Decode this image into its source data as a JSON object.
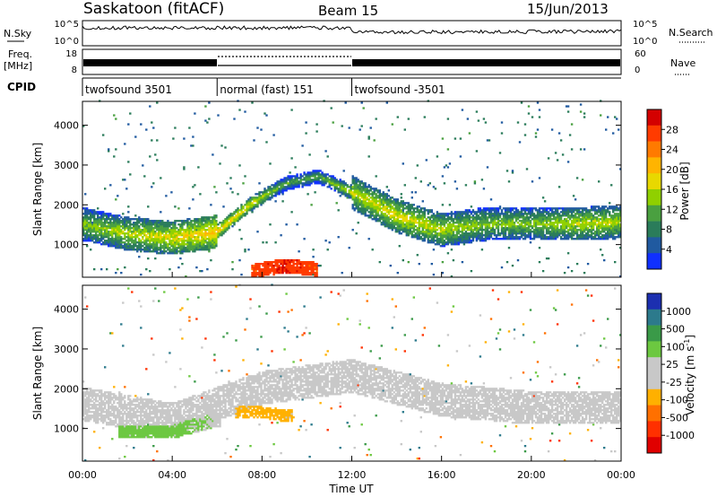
{
  "header": {
    "station": "Saskatoon (fitACF)",
    "beam": "Beam 15",
    "date": "15/Jun/2013"
  },
  "noise_panel": {
    "left_label": "N.Sky",
    "left_ticks": [
      "10^5",
      "10^0"
    ],
    "right_ticks": [
      "10^5",
      "10^0"
    ],
    "right_label": "N.Search"
  },
  "freq_panel": {
    "left_label_top": "Freq.",
    "left_label_bottom": "[MHz]",
    "left_ticks": [
      "18",
      "8"
    ],
    "right_ticks": [
      "60",
      "0"
    ],
    "right_label": "Nave"
  },
  "cpid": {
    "label": "CPID",
    "segments": [
      {
        "name": "twofsound 3501",
        "start_hour": 0,
        "end_hour": 6
      },
      {
        "name": "normal (fast) 151",
        "start_hour": 6,
        "end_hour": 12
      },
      {
        "name": "twofsound -3501",
        "start_hour": 12,
        "end_hour": 24
      }
    ]
  },
  "power_colorbar": {
    "label": "Power [dB]",
    "ticks": [
      "28",
      "24",
      "20",
      "16",
      "12",
      "8",
      "4"
    ],
    "colors": [
      "#d40000",
      "#ff3b00",
      "#ff7a00",
      "#ffb400",
      "#e8d800",
      "#90d000",
      "#4aa040",
      "#2a7c5a",
      "#205aa0",
      "#1030ff"
    ]
  },
  "velocity_colorbar": {
    "label": "Velocity [m s",
    "label_sup": "-1",
    "label_end": "]",
    "ticks": [
      "1000",
      "500",
      "100",
      "25",
      "-25",
      "-100",
      "-500",
      "-1000"
    ],
    "colors": [
      "#1c2fb0",
      "#2c7a8c",
      "#3a9a48",
      "#6cc840",
      "#c8c8c8",
      "#c8c8c8",
      "#ffb000",
      "#ff7000",
      "#ff3000",
      "#e00000"
    ]
  },
  "chart_data": [
    {
      "type": "heatmap",
      "title": "Power",
      "ylabel": "Slant Range [km]",
      "yticks": [
        1000,
        2000,
        3000,
        4000
      ],
      "ylim": [
        180,
        4600
      ],
      "xlim": [
        0,
        24
      ],
      "colorbar_label": "Power [dB]",
      "colorbar_range": [
        0,
        32
      ],
      "features": [
        {
          "name": "main echo band",
          "hours": [
            0,
            2,
            4,
            6,
            7.5,
            9,
            10.5,
            12,
            14,
            16,
            18,
            20,
            22,
            24
          ],
          "slant_range_km": [
            1500,
            1250,
            1150,
            1300,
            2000,
            2500,
            2700,
            2300,
            1700,
            1350,
            1500,
            1500,
            1500,
            1550
          ],
          "power_db": [
            14,
            16,
            18,
            20,
            18,
            12,
            12,
            16,
            18,
            16,
            14,
            14,
            16,
            16
          ]
        },
        {
          "name": "near-range strong echo",
          "hours": [
            7.5,
            9,
            10.5
          ],
          "slant_range_km": [
            300,
            450,
            350
          ],
          "power_db": [
            28,
            30,
            28
          ]
        }
      ]
    },
    {
      "type": "heatmap",
      "title": "Velocity",
      "ylabel": "Slant Range [km]",
      "yticks": [
        1000,
        2000,
        3000,
        4000
      ],
      "ylim": [
        180,
        4600
      ],
      "xlabel": "Time UT",
      "xticks": [
        "00:00",
        "04:00",
        "08:00",
        "12:00",
        "16:00",
        "20:00",
        "00:00"
      ],
      "xlim": [
        0,
        24
      ],
      "colorbar_label": "Velocity [m s-1]",
      "colorbar_range": [
        -1000,
        1000
      ],
      "features": [
        {
          "name": "ground scatter band",
          "hours": [
            0,
            4,
            8,
            12,
            16,
            20,
            24
          ],
          "slant_range_km": [
            1600,
            1200,
            2000,
            2300,
            1700,
            1500,
            1500
          ],
          "velocity_ms": [
            0,
            0,
            0,
            0,
            0,
            0,
            0
          ]
        },
        {
          "name": "positive velocity echo",
          "hours": [
            2,
            4,
            6
          ],
          "slant_range_km": [
            900,
            900,
            1200
          ],
          "velocity_ms": [
            300,
            300,
            150
          ]
        },
        {
          "name": "negative velocity echo",
          "hours": [
            7,
            8,
            9
          ],
          "slant_range_km": [
            1400,
            1400,
            1300
          ],
          "velocity_ms": [
            -250,
            -300,
            -250
          ]
        }
      ]
    }
  ]
}
